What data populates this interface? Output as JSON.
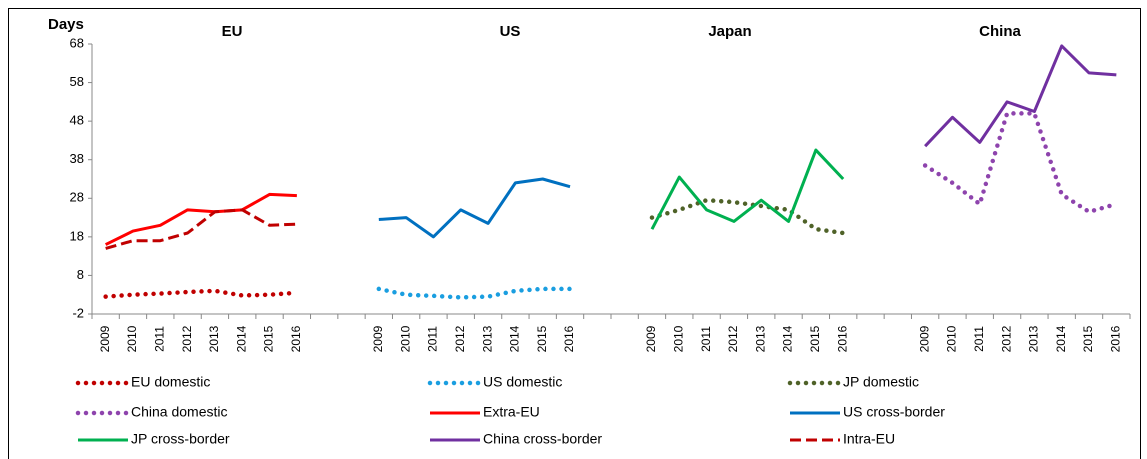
{
  "chart_data": {
    "type": "line",
    "y_label": "Days",
    "panels": [
      "EU",
      "US",
      "Japan",
      "China"
    ],
    "categories": [
      "2009",
      "2010",
      "2011",
      "2012",
      "2013",
      "2014",
      "2015",
      "2016",
      null,
      null,
      "2009",
      "2010",
      "2011",
      "2012",
      "2013",
      "2014",
      "2015",
      "2016",
      null,
      null,
      "2009",
      "2010",
      "2011",
      "2012",
      "2013",
      "2014",
      "2015",
      "2016",
      null,
      null,
      "2009",
      "2010",
      "2011",
      "2012",
      "2013",
      "2014",
      "2015",
      "2016"
    ],
    "ylim": [
      -2,
      68
    ],
    "yticks": [
      -2,
      8,
      18,
      28,
      38,
      48,
      58,
      68
    ],
    "grid": false,
    "series": [
      {
        "name": "EU domestic",
        "color": "#c00000",
        "style": "dotted",
        "values": [
          2.5,
          3,
          3.3,
          3.7,
          4,
          2.8,
          3,
          3.5,
          null,
          null,
          null,
          null,
          null,
          null,
          null,
          null,
          null,
          null,
          null,
          null,
          null,
          null,
          null,
          null,
          null,
          null,
          null,
          null,
          null,
          null,
          null,
          null,
          null,
          null,
          null,
          null,
          null,
          null
        ]
      },
      {
        "name": "US domestic",
        "color": "#1a9ee0",
        "style": "dotted",
        "values": [
          null,
          null,
          null,
          null,
          null,
          null,
          null,
          null,
          null,
          null,
          4.5,
          3,
          2.7,
          2.3,
          2.5,
          4,
          4.5,
          4.5,
          null,
          null,
          null,
          null,
          null,
          null,
          null,
          null,
          null,
          null,
          null,
          null,
          null,
          null,
          null,
          null,
          null,
          null,
          null,
          null
        ]
      },
      {
        "name": "JP domestic",
        "color": "#4f6228",
        "style": "dotted",
        "values": [
          null,
          null,
          null,
          null,
          null,
          null,
          null,
          null,
          null,
          null,
          null,
          null,
          null,
          null,
          null,
          null,
          null,
          null,
          null,
          null,
          23,
          25,
          27.5,
          27,
          26,
          25,
          20,
          19,
          null,
          null,
          null,
          null,
          null,
          null,
          null,
          null,
          null,
          null
        ]
      },
      {
        "name": "China domestic",
        "color": "#8e44ad",
        "style": "dotted",
        "values": [
          null,
          null,
          null,
          null,
          null,
          null,
          null,
          null,
          null,
          null,
          null,
          null,
          null,
          null,
          null,
          null,
          null,
          null,
          null,
          null,
          null,
          null,
          null,
          null,
          null,
          null,
          null,
          null,
          null,
          null,
          36.5,
          32,
          26.5,
          50,
          50,
          29,
          24.5,
          26.5
        ]
      },
      {
        "name": "Extra-EU",
        "color": "#ff0000",
        "style": "solid",
        "values": [
          16,
          19.5,
          21,
          25,
          24.5,
          25,
          29,
          28.7,
          null,
          null,
          null,
          null,
          null,
          null,
          null,
          null,
          null,
          null,
          null,
          null,
          null,
          null,
          null,
          null,
          null,
          null,
          null,
          null,
          null,
          null,
          null,
          null,
          null,
          null,
          null,
          null,
          null,
          null
        ]
      },
      {
        "name": "US cross-border",
        "color": "#0070c0",
        "style": "solid",
        "values": [
          null,
          null,
          null,
          null,
          null,
          null,
          null,
          null,
          null,
          null,
          22.5,
          23,
          18,
          25,
          21.5,
          32,
          33,
          31,
          null,
          null,
          null,
          null,
          null,
          null,
          null,
          null,
          null,
          null,
          null,
          null,
          null,
          null,
          null,
          null,
          null,
          null,
          null,
          null
        ]
      },
      {
        "name": "JP cross-border",
        "color": "#00b050",
        "style": "solid",
        "values": [
          null,
          null,
          null,
          null,
          null,
          null,
          null,
          null,
          null,
          null,
          null,
          null,
          null,
          null,
          null,
          null,
          null,
          null,
          null,
          null,
          20,
          33.5,
          25,
          22,
          27.5,
          22,
          40.5,
          33,
          null,
          null,
          null,
          null,
          null,
          null,
          null,
          null,
          null,
          null
        ]
      },
      {
        "name": "China cross-border",
        "color": "#7030a0",
        "style": "solid",
        "values": [
          null,
          null,
          null,
          null,
          null,
          null,
          null,
          null,
          null,
          null,
          null,
          null,
          null,
          null,
          null,
          null,
          null,
          null,
          null,
          null,
          null,
          null,
          null,
          null,
          null,
          null,
          null,
          null,
          null,
          null,
          41.5,
          49,
          42.5,
          53,
          50.5,
          67.5,
          60.5,
          60
        ]
      },
      {
        "name": "Intra-EU",
        "color": "#c00000",
        "style": "dashed",
        "values": [
          15,
          17,
          17,
          19,
          24.5,
          25,
          21,
          21.3,
          null,
          null,
          null,
          null,
          null,
          null,
          null,
          null,
          null,
          null,
          null,
          null,
          null,
          null,
          null,
          null,
          null,
          null,
          null,
          null,
          null,
          null,
          null,
          null,
          null,
          null,
          null,
          null,
          null,
          null
        ]
      }
    ]
  }
}
